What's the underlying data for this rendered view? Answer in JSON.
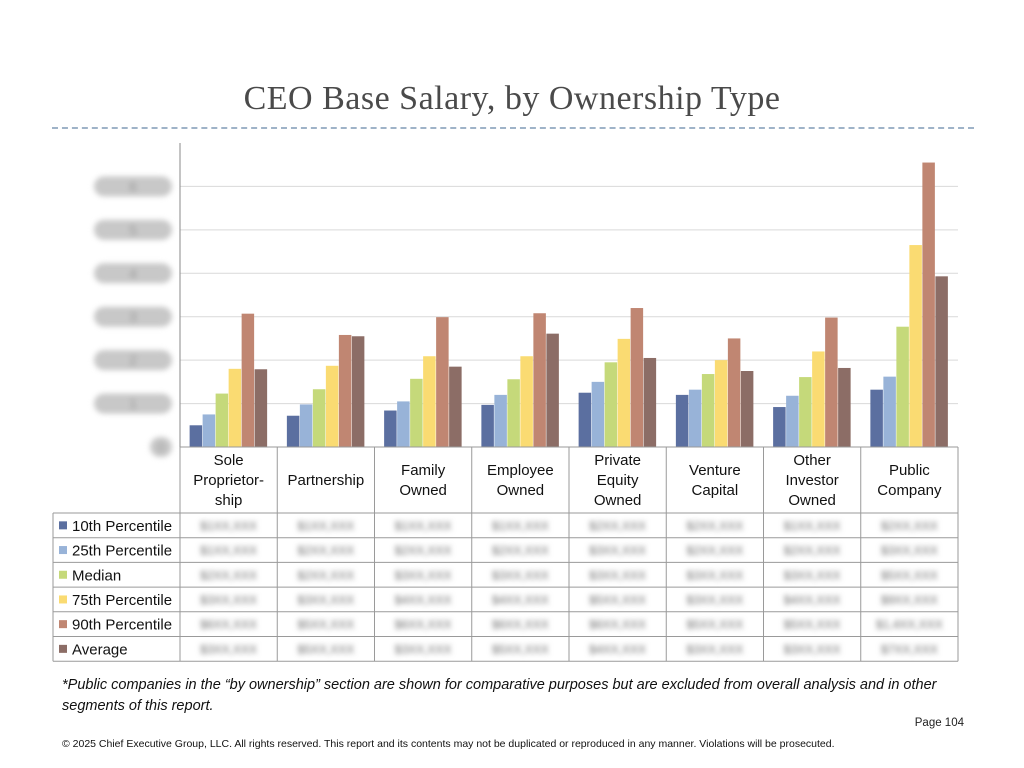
{
  "page": {
    "title": "CEO Base Salary, by Ownership Type",
    "footnote": "*Public companies in the “by ownership” section are shown for comparative purposes but are excluded from overall analysis and in other segments of this report.",
    "page_number": "Page 104",
    "copyright": "© 2025 Chief Executive Group, LLC. All rights reserved. This report and its contents may not be duplicated or reproduced in any manner. Violations will be prosecuted."
  },
  "chart_data": {
    "type": "bar",
    "title": "CEO Base Salary, by Ownership Type",
    "xlabel": "",
    "ylabel": "",
    "ylim": [
      0,
      7
    ],
    "grid": true,
    "legend": "table-below",
    "categories": [
      [
        "Sole",
        "Proprietor-",
        "ship"
      ],
      [
        "Partnership"
      ],
      [
        "Family",
        "Owned"
      ],
      [
        "Employee",
        "Owned"
      ],
      [
        "Private",
        "Equity",
        "Owned"
      ],
      [
        "Venture",
        "Capital"
      ],
      [
        "Other",
        "Investor",
        "Owned"
      ],
      [
        "Public",
        "Company"
      ]
    ],
    "series": [
      {
        "name": "10th Percentile",
        "color": "#5b6fa0",
        "values": [
          0.5,
          0.72,
          0.84,
          0.97,
          1.25,
          1.2,
          0.92,
          1.32
        ]
      },
      {
        "name": "25th Percentile",
        "color": "#98b3d8",
        "values": [
          0.75,
          0.98,
          1.05,
          1.2,
          1.5,
          1.32,
          1.18,
          1.62
        ]
      },
      {
        "name": "Median",
        "color": "#c5d97a",
        "values": [
          1.23,
          1.33,
          1.57,
          1.56,
          1.95,
          1.68,
          1.61,
          2.77
        ]
      },
      {
        "name": "75th Percentile",
        "color": "#fadb72",
        "values": [
          1.8,
          1.87,
          2.09,
          2.09,
          2.49,
          2.0,
          2.2,
          4.65
        ]
      },
      {
        "name": "90th Percentile",
        "color": "#c08672",
        "values": [
          3.07,
          2.58,
          2.99,
          3.08,
          3.2,
          2.5,
          2.98,
          6.55
        ]
      },
      {
        "name": "Average",
        "color": "#8c6d66",
        "values": [
          1.79,
          2.55,
          1.85,
          2.61,
          2.05,
          1.75,
          1.82,
          3.93
        ]
      }
    ],
    "y_tick_labels": [
      "0",
      "1",
      "2",
      "3",
      "4",
      "5",
      "6"
    ],
    "table_values": [
      [
        "$1XX,XXX",
        "$1XX,XXX",
        "$1XX,XXX",
        "$1XX,XXX",
        "$2XX,XXX",
        "$2XX,XXX",
        "$1XX,XXX",
        "$2XX,XXX"
      ],
      [
        "$1XX,XXX",
        "$2XX,XXX",
        "$2XX,XXX",
        "$2XX,XXX",
        "$3XX,XXX",
        "$2XX,XXX",
        "$2XX,XXX",
        "$3XX,XXX"
      ],
      [
        "$2XX,XXX",
        "$2XX,XXX",
        "$3XX,XXX",
        "$3XX,XXX",
        "$3XX,XXX",
        "$3XX,XXX",
        "$3XX,XXX",
        "$5XX,XXX"
      ],
      [
        "$3XX,XXX",
        "$3XX,XXX",
        "$4XX,XXX",
        "$4XX,XXX",
        "$5XX,XXX",
        "$3XX,XXX",
        "$4XX,XXX",
        "$9XX,XXX"
      ],
      [
        "$6XX,XXX",
        "$5XX,XXX",
        "$6XX,XXX",
        "$6XX,XXX",
        "$6XX,XXX",
        "$5XX,XXX",
        "$5XX,XXX",
        "$1,4XX,XXX"
      ],
      [
        "$3XX,XXX",
        "$5XX,XXX",
        "$3XX,XXX",
        "$5XX,XXX",
        "$4XX,XXX",
        "$3XX,XXX",
        "$3XX,XXX",
        "$7XX,XXX"
      ]
    ]
  }
}
